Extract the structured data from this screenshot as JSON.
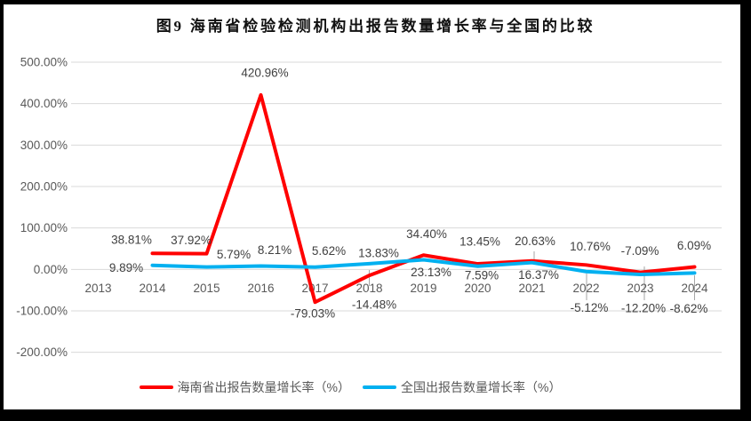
{
  "title": "图9 海南省检验检测机构出报告数量增长率与全国的比较",
  "chart_data": {
    "type": "line",
    "categories": [
      "2013",
      "2014",
      "2015",
      "2016",
      "2017",
      "2018",
      "2019",
      "2020",
      "2021",
      "2022",
      "2023",
      "2024"
    ],
    "series": [
      {
        "name": "海南省出报告数量增长率（%）",
        "color": "#ff0000",
        "values": [
          null,
          38.81,
          37.92,
          420.96,
          -79.03,
          -14.48,
          34.4,
          13.45,
          20.63,
          10.76,
          -7.09,
          6.09
        ],
        "labels": [
          "",
          "38.81%",
          "37.92%",
          "420.96%",
          "-79.03%",
          "-14.48%",
          "34.40%",
          "13.45%",
          "20.63%",
          "10.76%",
          "-7.09%",
          "6.09%"
        ]
      },
      {
        "name": "全国出报告数量增长率（%）",
        "color": "#00b0f0",
        "values": [
          null,
          9.89,
          5.79,
          8.21,
          5.62,
          13.83,
          23.13,
          7.59,
          16.37,
          -5.12,
          -12.2,
          -8.62
        ],
        "labels": [
          "",
          "9.89%",
          "5.79%",
          "8.21%",
          "5.62%",
          "13.83%",
          "23.13%",
          "7.59%",
          "16.37%",
          "-5.12%",
          "-12.20%",
          "-8.62%"
        ]
      }
    ],
    "y_ticks": [
      "500.00%",
      "400.00%",
      "300.00%",
      "200.00%",
      "100.00%",
      "0.00%",
      "-100.00%",
      "-200.00%"
    ],
    "y_tick_values": [
      500,
      400,
      300,
      200,
      100,
      0,
      -100,
      -200
    ],
    "ylim": [
      -200,
      500
    ],
    "grid": true,
    "legend_position": "bottom",
    "gridline_color": "#d9d9d9",
    "axis_text_color": "#595959",
    "label_text_color": "#404040"
  }
}
